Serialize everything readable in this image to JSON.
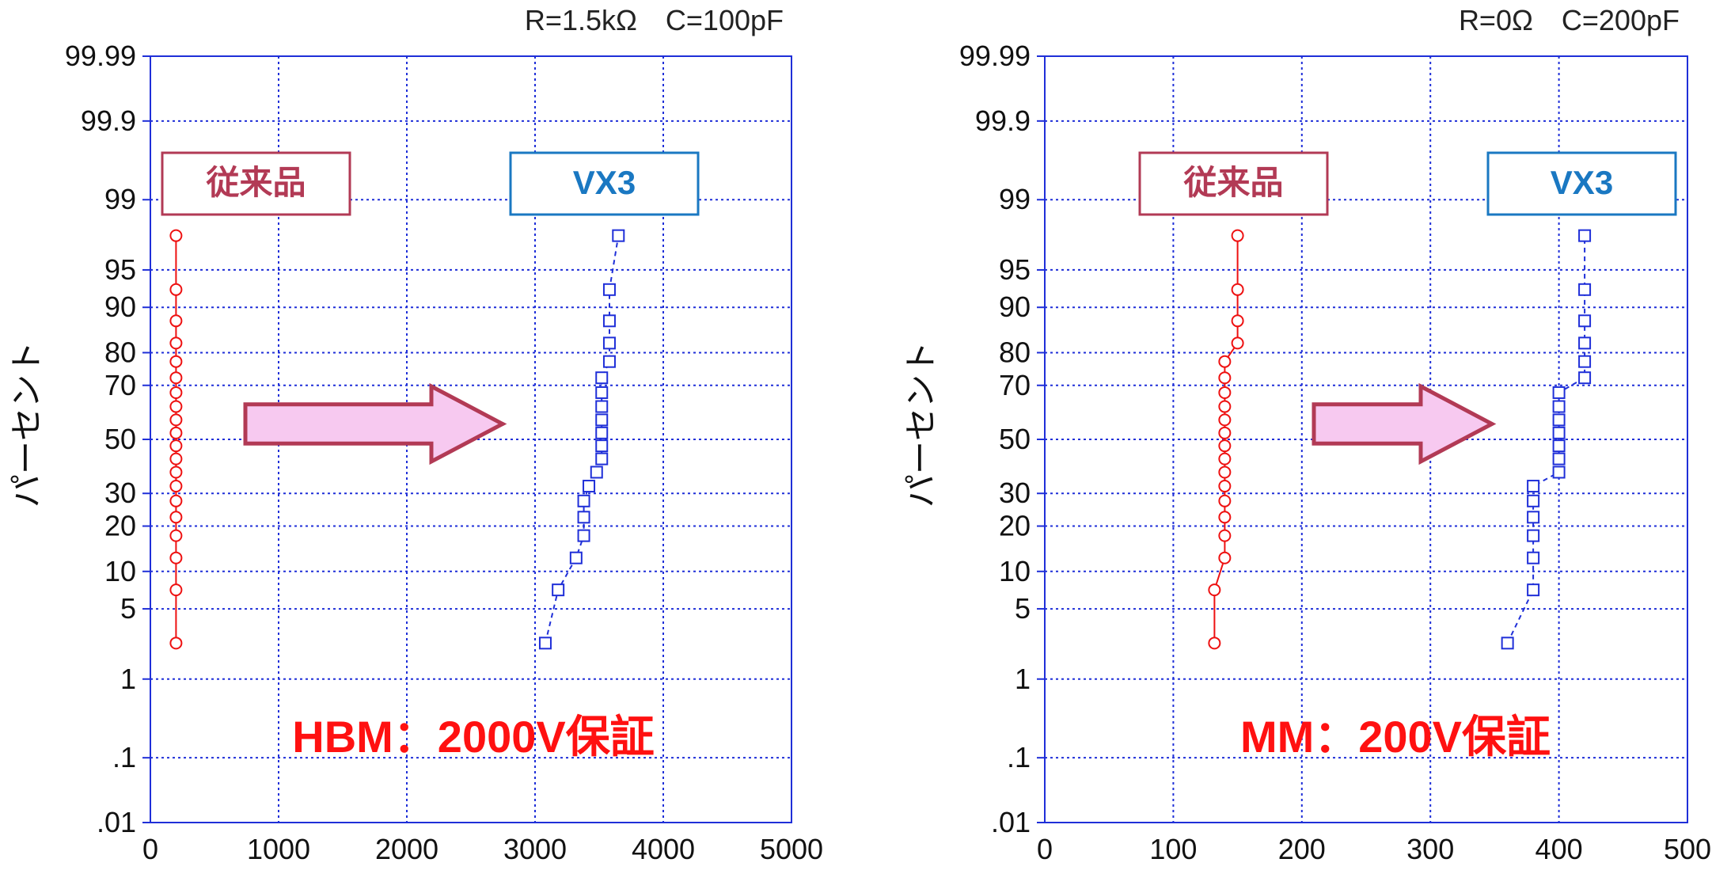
{
  "chart_data": [
    {
      "type": "scatter",
      "scale": "normal-probability",
      "condition_label": "R=1.5kΩ　C=100pF",
      "ylabel": "パーセント",
      "xlim": [
        0,
        5000
      ],
      "x_ticks": [
        0,
        1000,
        2000,
        3000,
        4000,
        5000
      ],
      "x_tick_labels": [
        "0",
        "1000",
        "2000",
        "3000",
        "4000",
        "5000"
      ],
      "y_ticks": [
        0.01,
        0.1,
        1,
        5,
        10,
        20,
        30,
        50,
        70,
        80,
        90,
        95,
        99,
        99.9,
        99.99
      ],
      "y_tick_labels": [
        ".01",
        ".1",
        "1",
        "5",
        "10",
        "20",
        "30",
        "50",
        "70",
        "80",
        "90",
        "95",
        "99",
        "99.9",
        "99.99"
      ],
      "grid": true,
      "conventional_label": "従来品",
      "new_label": "VX3",
      "guarantee_label": "HBM：2000V保証",
      "series": [
        {
          "name": "従来品",
          "color": "#ee1111",
          "marker": "circle",
          "points": [
            [
              200,
              2.4
            ],
            [
              200,
              7.2
            ],
            [
              200,
              12.5
            ],
            [
              200,
              17.5
            ],
            [
              200,
              22.5
            ],
            [
              200,
              27.5
            ],
            [
              200,
              32.5
            ],
            [
              200,
              37.5
            ],
            [
              200,
              42.5
            ],
            [
              200,
              47.5
            ],
            [
              200,
              52.5
            ],
            [
              200,
              57.5
            ],
            [
              200,
              62.5
            ],
            [
              200,
              67.5
            ],
            [
              200,
              72.5
            ],
            [
              200,
              77.5
            ],
            [
              200,
              82.5
            ],
            [
              200,
              87.5
            ],
            [
              200,
              92.7
            ],
            [
              200,
              97.6
            ]
          ]
        },
        {
          "name": "VX3",
          "color": "#1f2fd8",
          "marker": "square",
          "points": [
            [
              3080,
              2.4
            ],
            [
              3180,
              7.2
            ],
            [
              3320,
              12.5
            ],
            [
              3380,
              17.5
            ],
            [
              3380,
              22.5
            ],
            [
              3380,
              27.5
            ],
            [
              3420,
              32.5
            ],
            [
              3480,
              37.5
            ],
            [
              3520,
              42.5
            ],
            [
              3520,
              47.5
            ],
            [
              3520,
              52.5
            ],
            [
              3520,
              57.5
            ],
            [
              3520,
              62.5
            ],
            [
              3520,
              67.5
            ],
            [
              3520,
              72.5
            ],
            [
              3580,
              77.5
            ],
            [
              3580,
              82.5
            ],
            [
              3580,
              87.5
            ],
            [
              3580,
              92.7
            ],
            [
              3650,
              97.6
            ]
          ]
        }
      ]
    },
    {
      "type": "scatter",
      "scale": "normal-probability",
      "condition_label": "R=0Ω　C=200pF",
      "ylabel": "パーセント",
      "xlim": [
        0,
        500
      ],
      "x_ticks": [
        0,
        100,
        200,
        300,
        400,
        500
      ],
      "x_tick_labels": [
        "0",
        "100",
        "200",
        "300",
        "400",
        "500"
      ],
      "y_ticks": [
        0.01,
        0.1,
        1,
        5,
        10,
        20,
        30,
        50,
        70,
        80,
        90,
        95,
        99,
        99.9,
        99.99
      ],
      "y_tick_labels": [
        ".01",
        ".1",
        "1",
        "5",
        "10",
        "20",
        "30",
        "50",
        "70",
        "80",
        "90",
        "95",
        "99",
        "99.9",
        "99.99"
      ],
      "grid": true,
      "conventional_label": "従来品",
      "new_label": "VX3",
      "guarantee_label": "MM：200V保証",
      "series": [
        {
          "name": "従来品",
          "color": "#ee1111",
          "marker": "circle",
          "points": [
            [
              132,
              2.4
            ],
            [
              132,
              7.2
            ],
            [
              140,
              12.5
            ],
            [
              140,
              17.5
            ],
            [
              140,
              22.5
            ],
            [
              140,
              27.5
            ],
            [
              140,
              32.5
            ],
            [
              140,
              37.5
            ],
            [
              140,
              42.5
            ],
            [
              140,
              47.5
            ],
            [
              140,
              52.5
            ],
            [
              140,
              57.5
            ],
            [
              140,
              62.5
            ],
            [
              140,
              67.5
            ],
            [
              140,
              72.5
            ],
            [
              140,
              77.5
            ],
            [
              150,
              82.5
            ],
            [
              150,
              87.5
            ],
            [
              150,
              92.7
            ],
            [
              150,
              97.6
            ]
          ]
        },
        {
          "name": "VX3",
          "color": "#1f2fd8",
          "marker": "square",
          "points": [
            [
              360,
              2.4
            ],
            [
              380,
              7.2
            ],
            [
              380,
              12.5
            ],
            [
              380,
              17.5
            ],
            [
              380,
              22.5
            ],
            [
              380,
              27.5
            ],
            [
              380,
              32.5
            ],
            [
              400,
              37.5
            ],
            [
              400,
              42.5
            ],
            [
              400,
              47.5
            ],
            [
              400,
              52.5
            ],
            [
              400,
              57.5
            ],
            [
              400,
              62.5
            ],
            [
              400,
              67.5
            ],
            [
              420,
              72.5
            ],
            [
              420,
              77.5
            ],
            [
              420,
              82.5
            ],
            [
              420,
              87.5
            ],
            [
              420,
              92.7
            ],
            [
              420,
              97.6
            ]
          ]
        }
      ]
    }
  ],
  "colors": {
    "grid": "#1f2fd8",
    "axis": "#1f2fd8",
    "conventional_box": "#b23a55",
    "new_box": "#1a78c2",
    "arrow_fill": "#f7c9f0",
    "arrow_stroke": "#b23a55",
    "guarantee": "#ff1111"
  }
}
